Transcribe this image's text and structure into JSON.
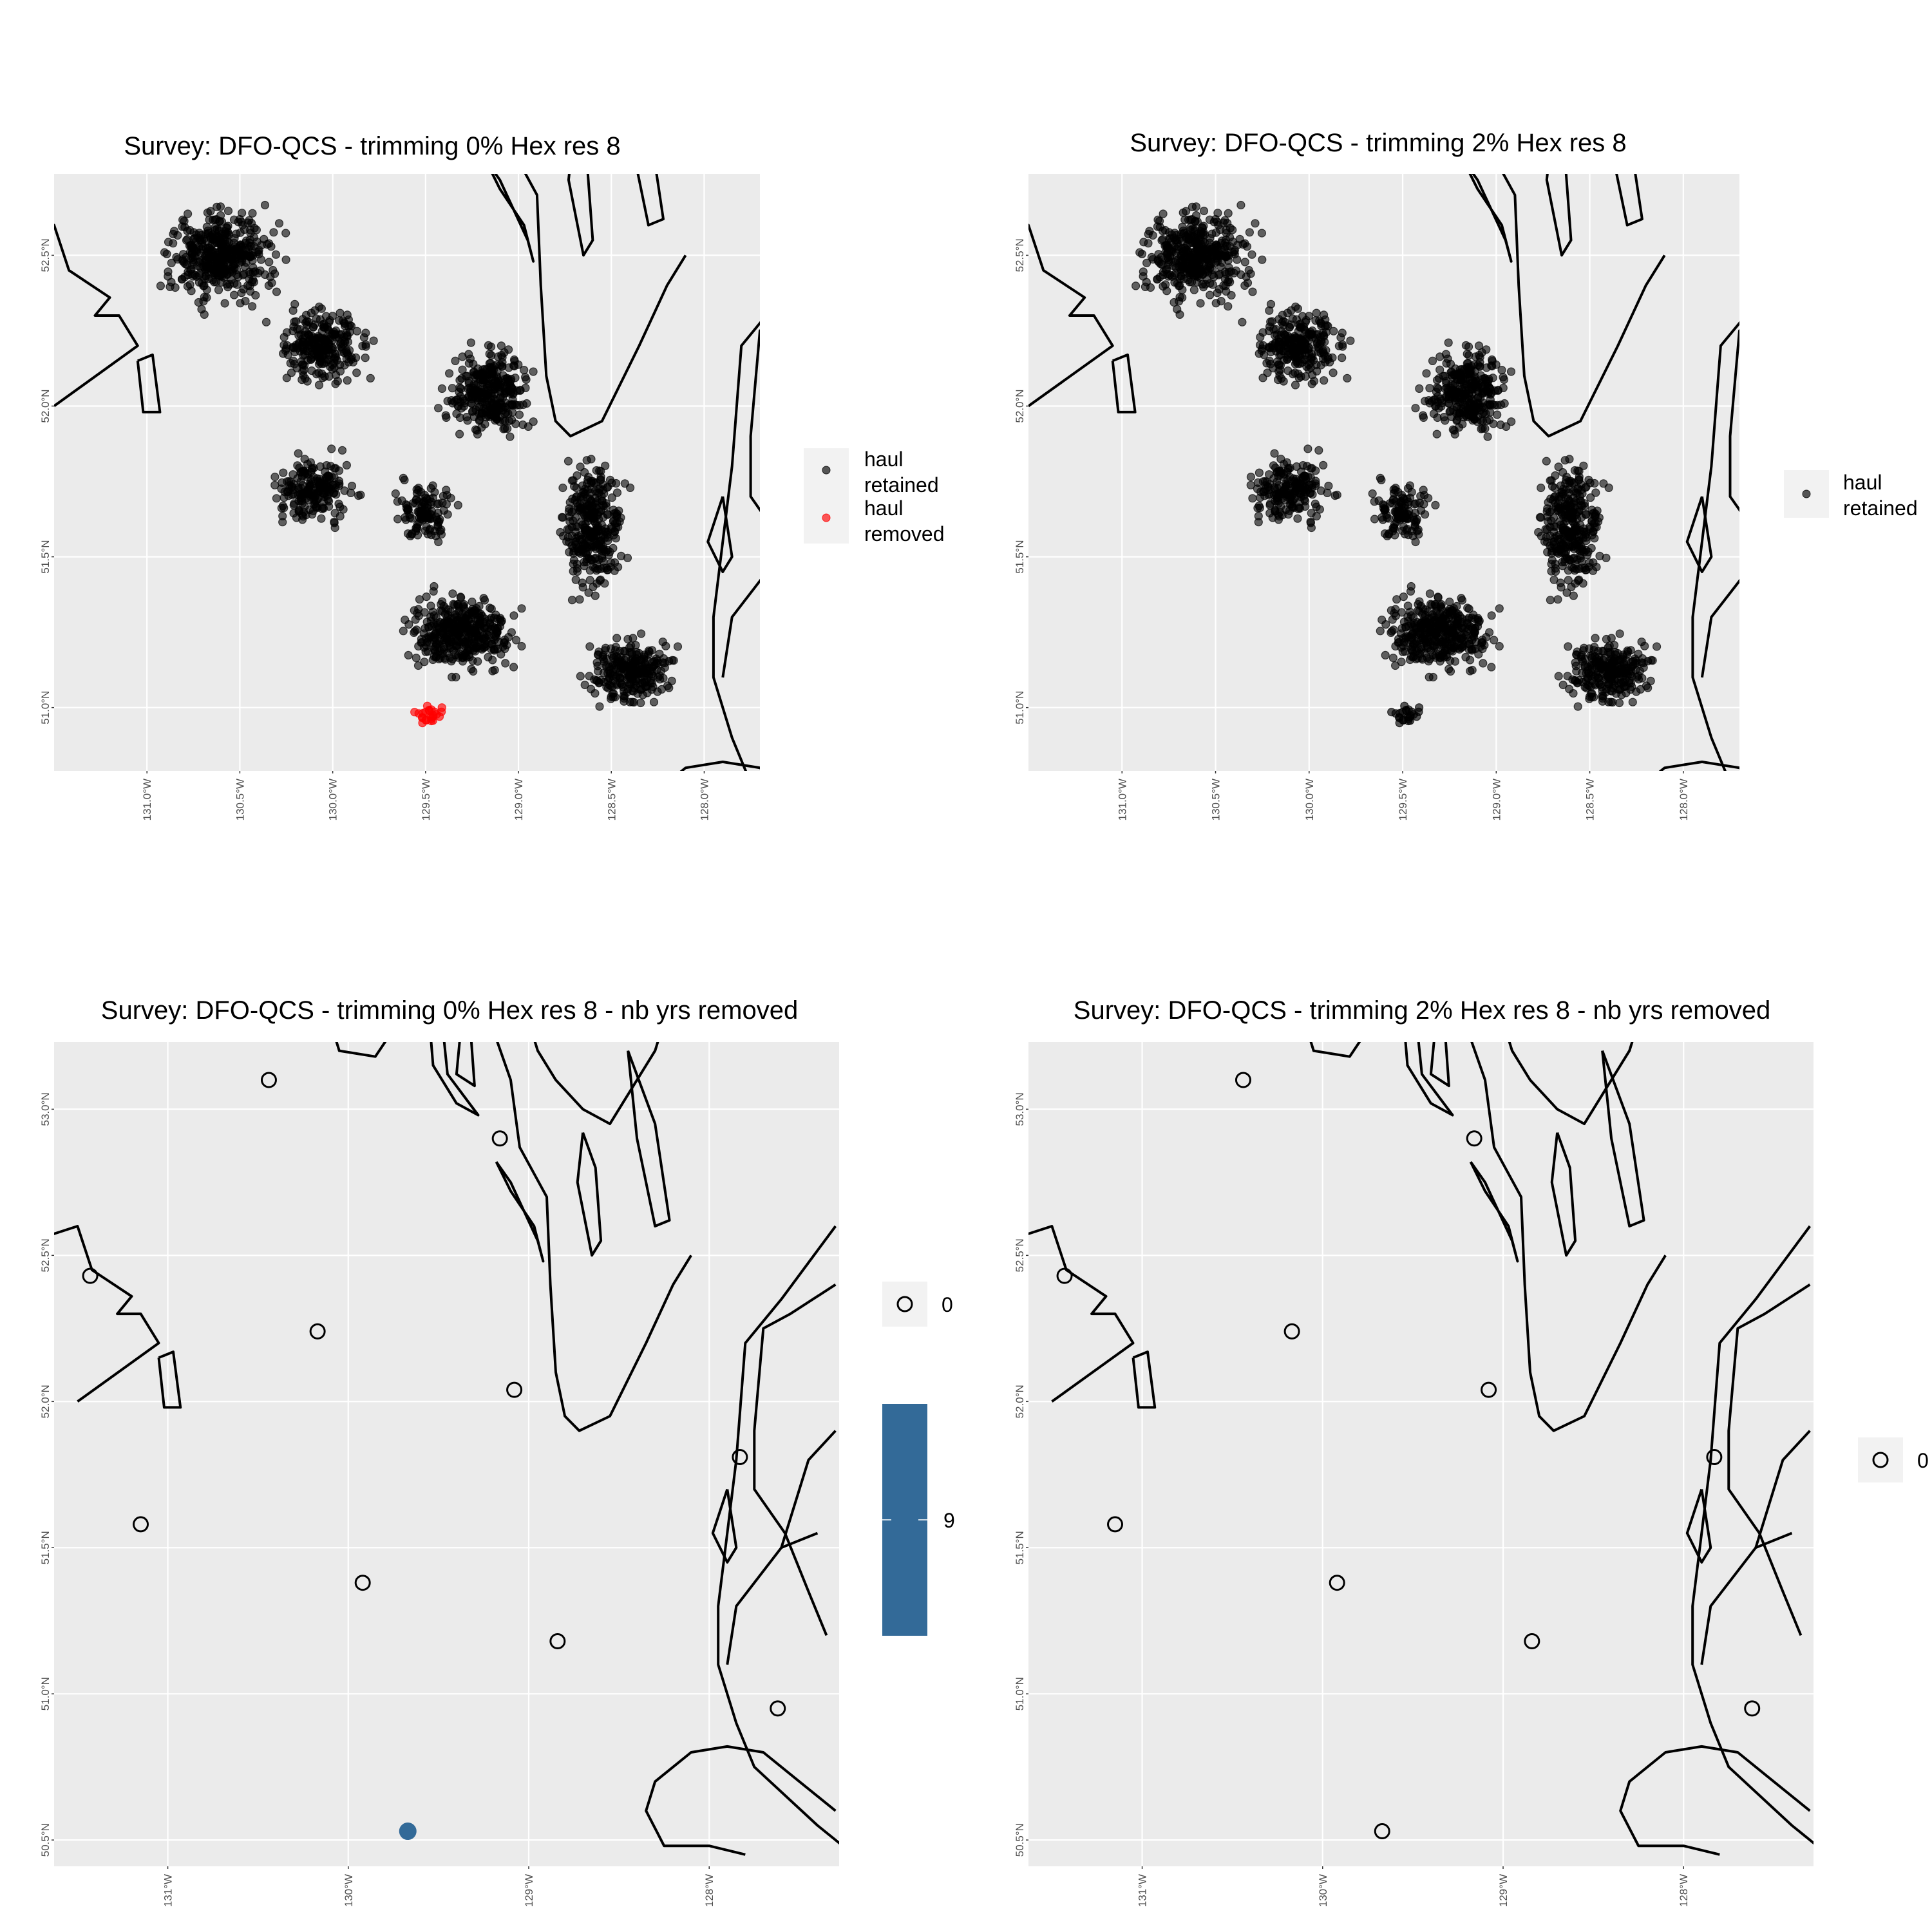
{
  "colors": {
    "panel_bg": "#ebebeb",
    "grid": "#ffffff",
    "coast": "#000000",
    "retained": "#000000",
    "removed": "#ff0000",
    "nb_yrs_fill": "#336a98",
    "legend_key_bg": "#f2f2f2"
  },
  "chart_data": [
    {
      "type": "scatter",
      "title": "Survey: DFO-QCS - trimming 0% Hex res 8",
      "x_ticks": [
        "131.0°W",
        "130.5°W",
        "130.0°W",
        "129.5°W",
        "129.0°W",
        "128.5°W",
        "128.0°W"
      ],
      "x_tick_values": [
        -131.0,
        -130.5,
        -130.0,
        -129.5,
        -129.0,
        -128.5,
        -128.0
      ],
      "y_ticks": [
        "51.0°N",
        "51.5°N",
        "52.0°N",
        "52.5°N"
      ],
      "y_tick_values": [
        51.0,
        51.5,
        52.0,
        52.5
      ],
      "xlim": [
        -131.5,
        -127.7
      ],
      "ylim": [
        50.79,
        52.77
      ],
      "legend": {
        "position": "right",
        "entries": [
          {
            "label": "haul retained",
            "lines": [
              "haul",
              "retained"
            ],
            "color": "#000000"
          },
          {
            "label": "haul removed",
            "lines": [
              "haul",
              "removed"
            ],
            "color": "#ff0000"
          }
        ]
      },
      "series": [
        {
          "name": "haul retained",
          "approx_count": 2400
        },
        {
          "name": "haul removed",
          "approx_count": 24,
          "x_range": [
            -129.6,
            -129.35
          ],
          "y_range": [
            50.88,
            51.03
          ]
        }
      ]
    },
    {
      "type": "scatter",
      "title": "Survey: DFO-QCS - trimming 2% Hex res 8",
      "x_ticks": [
        "131.0°W",
        "130.5°W",
        "130.0°W",
        "129.5°W",
        "129.0°W",
        "128.5°W",
        "128.0°W"
      ],
      "x_tick_values": [
        -131.0,
        -130.5,
        -130.0,
        -129.5,
        -129.0,
        -128.5,
        -128.0
      ],
      "y_ticks": [
        "51.0°N",
        "51.5°N",
        "52.0°N",
        "52.5°N"
      ],
      "y_tick_values": [
        51.0,
        51.5,
        52.0,
        52.5
      ],
      "xlim": [
        -131.5,
        -127.7
      ],
      "ylim": [
        50.79,
        52.77
      ],
      "legend": {
        "position": "right",
        "entries": [
          {
            "label": "haul retained",
            "lines": [
              "haul",
              "retained"
            ],
            "color": "#000000"
          }
        ]
      },
      "series": [
        {
          "name": "haul retained",
          "approx_count": 2350
        }
      ]
    },
    {
      "type": "scatter",
      "title": "Survey: DFO-QCS - trimming 0% Hex res 8 - nb yrs removed",
      "x_ticks": [
        "131°W",
        "130°W",
        "129°W",
        "128°W"
      ],
      "x_tick_values": [
        -131,
        -130,
        -129,
        -128
      ],
      "y_ticks": [
        "50.5°N",
        "51.0°N",
        "51.5°N",
        "52.0°N",
        "52.5°N",
        "53.0°N"
      ],
      "y_tick_values": [
        50.5,
        51.0,
        51.5,
        52.0,
        52.5,
        53.0
      ],
      "xlim": [
        -131.63,
        -127.28
      ],
      "ylim": [
        50.41,
        53.23
      ],
      "legend": {
        "position": "right",
        "shape_key_label": "0",
        "colorbar_label": "9"
      },
      "points": [
        {
          "lon": -130.44,
          "lat": 53.1,
          "nb_yrs_removed": 0
        },
        {
          "lon": -129.16,
          "lat": 52.9,
          "nb_yrs_removed": 0
        },
        {
          "lon": -131.43,
          "lat": 52.43,
          "nb_yrs_removed": 0
        },
        {
          "lon": -130.17,
          "lat": 52.24,
          "nb_yrs_removed": 0
        },
        {
          "lon": -129.08,
          "lat": 52.04,
          "nb_yrs_removed": 0
        },
        {
          "lon": -127.83,
          "lat": 51.81,
          "nb_yrs_removed": 0
        },
        {
          "lon": -131.15,
          "lat": 51.58,
          "nb_yrs_removed": 0
        },
        {
          "lon": -129.92,
          "lat": 51.38,
          "nb_yrs_removed": 0
        },
        {
          "lon": -128.84,
          "lat": 51.18,
          "nb_yrs_removed": 0
        },
        {
          "lon": -127.62,
          "lat": 50.95,
          "nb_yrs_removed": 0
        },
        {
          "lon": -129.67,
          "lat": 50.53,
          "nb_yrs_removed": 9
        }
      ]
    },
    {
      "type": "scatter",
      "title": "Survey: DFO-QCS - trimming 2% Hex res 8 - nb yrs removed",
      "x_ticks": [
        "131°W",
        "130°W",
        "129°W",
        "128°W"
      ],
      "x_tick_values": [
        -131,
        -130,
        -129,
        -128
      ],
      "y_ticks": [
        "50.5°N",
        "51.0°N",
        "51.5°N",
        "52.0°N",
        "52.5°N",
        "53.0°N"
      ],
      "y_tick_values": [
        50.5,
        51.0,
        51.5,
        52.0,
        52.5,
        53.0
      ],
      "xlim": [
        -131.63,
        -127.28
      ],
      "ylim": [
        50.41,
        53.23
      ],
      "legend": {
        "position": "right",
        "shape_key_label": "0"
      },
      "points": [
        {
          "lon": -130.44,
          "lat": 53.1,
          "nb_yrs_removed": 0
        },
        {
          "lon": -129.16,
          "lat": 52.9,
          "nb_yrs_removed": 0
        },
        {
          "lon": -131.43,
          "lat": 52.43,
          "nb_yrs_removed": 0
        },
        {
          "lon": -130.17,
          "lat": 52.24,
          "nb_yrs_removed": 0
        },
        {
          "lon": -129.08,
          "lat": 52.04,
          "nb_yrs_removed": 0
        },
        {
          "lon": -127.83,
          "lat": 51.81,
          "nb_yrs_removed": 0
        },
        {
          "lon": -131.15,
          "lat": 51.58,
          "nb_yrs_removed": 0
        },
        {
          "lon": -129.92,
          "lat": 51.38,
          "nb_yrs_removed": 0
        },
        {
          "lon": -128.84,
          "lat": 51.18,
          "nb_yrs_removed": 0
        },
        {
          "lon": -127.62,
          "lat": 50.95,
          "nb_yrs_removed": 0
        },
        {
          "lon": -129.67,
          "lat": 50.53,
          "nb_yrs_removed": 0
        }
      ]
    }
  ]
}
